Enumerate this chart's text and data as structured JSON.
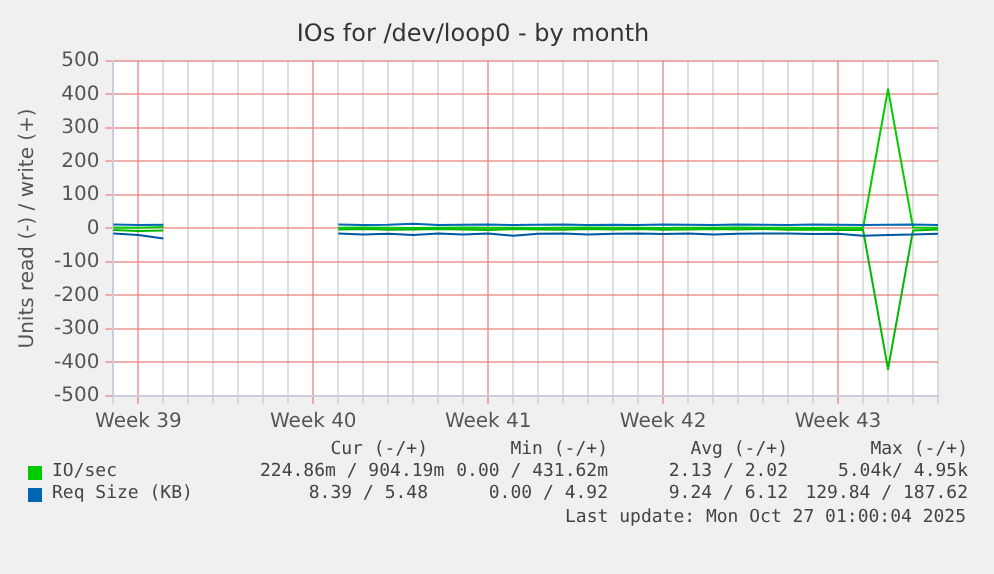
{
  "chart_data": {
    "type": "line",
    "title": "IOs for /dev/loop0 - by month",
    "ylabel": "Units read (-) / write (+)",
    "categories": [
      null,
      "Week 39",
      null,
      null,
      null,
      null,
      null,
      null,
      "Week 40",
      null,
      null,
      null,
      null,
      null,
      null,
      "Week 41",
      null,
      null,
      null,
      null,
      null,
      null,
      "Week 42",
      null,
      null,
      null,
      null,
      null,
      null,
      "Week 43",
      null,
      null,
      null,
      null
    ],
    "ylim": [
      -500,
      500
    ],
    "yticks": [
      -500,
      -400,
      -300,
      -200,
      -100,
      0,
      100,
      200,
      300,
      400,
      500
    ],
    "series": [
      {
        "name": "IO/sec",
        "color": "#00cc00",
        "values": [
          3,
          2,
          4,
          null,
          null,
          null,
          null,
          null,
          null,
          2,
          3,
          2,
          1,
          2,
          3,
          2,
          2,
          1,
          2,
          3,
          2,
          2,
          1,
          2,
          2,
          3,
          2,
          2,
          1,
          2,
          2,
          415,
          3,
          2
        ]
      },
      {
        "color": "#00b800",
        "values": [
          -5,
          -8,
          -6,
          null,
          null,
          null,
          null,
          null,
          null,
          -3,
          -2,
          -4,
          -3,
          -2,
          -3,
          -5,
          -2,
          -3,
          -4,
          -2,
          -3,
          -2,
          -4,
          -3,
          -2,
          -3,
          -2,
          -4,
          -3,
          -5,
          -4,
          -420,
          -6,
          -3
        ]
      },
      {
        "name": "Req Size (KB)",
        "color": "#0066b3",
        "values": [
          12,
          10,
          11,
          null,
          null,
          null,
          null,
          null,
          null,
          12,
          10,
          11,
          14,
          10,
          11,
          12,
          10,
          11,
          12,
          10,
          11,
          10,
          12,
          11,
          10,
          12,
          11,
          10,
          12,
          11,
          10,
          11,
          12,
          10
        ]
      },
      {
        "color": "#0058a0",
        "values": [
          -15,
          -20,
          -30,
          null,
          null,
          null,
          null,
          null,
          null,
          -15,
          -18,
          -16,
          -20,
          -15,
          -18,
          -15,
          -22,
          -16,
          -15,
          -18,
          -16,
          -15,
          -17,
          -15,
          -18,
          -16,
          -15,
          -15,
          -17,
          -16,
          -22,
          -20,
          -18,
          -16
        ]
      }
    ],
    "annotations": [
      "Cur (-/+)",
      "Min (-/+)",
      "Avg (-/+)",
      "Max (-/+)",
      "224.86m / 904.19m",
      "0.00 / 431.62m",
      "2.13 / 2.02",
      "5.04k/ 4.95k",
      "8.39 / 5.48",
      "0.00 / 4.92",
      "9.24 / 6.12",
      "129.84 / 187.62",
      "Last update: Mon Oct 27 01:00:04 2025"
    ],
    "grid": true,
    "legend": "bottom",
    "marker": "none",
    "line_style": "solid"
  }
}
